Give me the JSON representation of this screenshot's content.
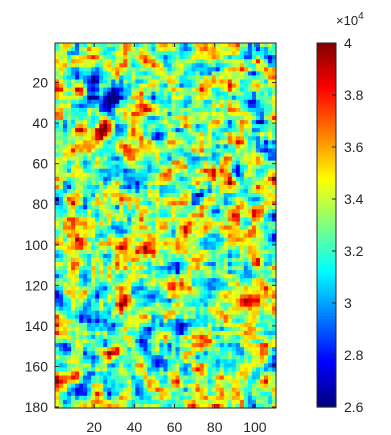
{
  "chart_data": {
    "type": "heatmap",
    "colormap": "jet",
    "x_ticks": [
      20,
      40,
      60,
      80,
      100
    ],
    "y_ticks": [
      20,
      40,
      60,
      80,
      100,
      120,
      140,
      160,
      180
    ],
    "xlim": [
      0.5,
      110.5
    ],
    "ylim": [
      0.5,
      180.5
    ],
    "y_direction": "reversed",
    "colorbar": {
      "range": [
        26000,
        40000
      ],
      "tick_labels": [
        "2.6",
        "2.8",
        "3",
        "3.2",
        "3.4",
        "3.6",
        "3.8",
        "4"
      ],
      "tick_values": [
        2.6,
        2.8,
        3.0,
        3.2,
        3.4,
        3.6,
        3.8,
        4.0
      ],
      "exponent_base": "×10",
      "exponent_power": "4"
    },
    "features": [
      {
        "x": 20,
        "y": 46,
        "value": 40000,
        "description": "hot spot"
      },
      {
        "x": 44,
        "y": 103,
        "value": 40000,
        "description": "hot spot"
      },
      {
        "x": 30,
        "y": 25,
        "value": 26500,
        "description": "low region"
      }
    ],
    "grid": false
  }
}
